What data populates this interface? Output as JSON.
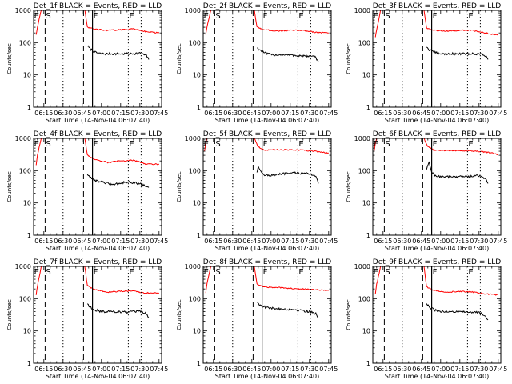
{
  "shared": {
    "ylabel": "Counts/sec",
    "xlabel": "Start Time (14-Nov-04 06:07:40)",
    "x_tick_labels": [
      "06:15",
      "06:30",
      "06:45",
      "07:00",
      "07:15",
      "07:30",
      "07:45"
    ],
    "y_tick_labels": [
      "1",
      "10",
      "100",
      "1000"
    ],
    "colors": {
      "events": "#000000",
      "lld": "#ff0000",
      "axes": "#000000"
    },
    "markers": [
      {
        "label": "E",
        "time": "06:08",
        "style": "none"
      },
      {
        "label": "S",
        "time": "06:16",
        "style": "dashed"
      },
      {
        "label": "",
        "time": "06:30",
        "style": "dotted"
      },
      {
        "label": "",
        "time": "06:46",
        "style": "dashed"
      },
      {
        "label": "F",
        "time": "06:53",
        "style": "solid"
      },
      {
        "label": "E",
        "time": "07:21",
        "style": "dotted"
      },
      {
        "label": "",
        "time": "07:31",
        "style": "dotted"
      }
    ]
  },
  "chart_data": [
    {
      "type": "line",
      "title": "Det_1f BLACK = Events, RED = LLD",
      "x_range": [
        "06:07",
        "07:47"
      ],
      "y_scale": "log",
      "ylim": [
        1,
        1000
      ],
      "series": [
        {
          "name": "Events",
          "start": "06:49",
          "end": "07:37",
          "x": [
            "06:49",
            "06:51",
            "06:55",
            "07:00",
            "07:10",
            "07:20",
            "07:30",
            "07:35",
            "07:37"
          ],
          "y": [
            80,
            65,
            50,
            45,
            45,
            45,
            47,
            40,
            30
          ]
        },
        {
          "name": "LLD",
          "start": "06:09",
          "end": "07:45",
          "x": [
            "06:09",
            "06:10",
            "06:12",
            "06:13",
            "06:14",
            "06:46",
            "06:47",
            "06:49",
            "06:55",
            "07:05",
            "07:15",
            "07:25",
            "07:35",
            "07:45"
          ],
          "y": [
            180,
            300,
            700,
            1000,
            1000,
            1000,
            1000,
            300,
            260,
            240,
            250,
            270,
            220,
            200
          ]
        }
      ]
    },
    {
      "type": "line",
      "title": "Det_2f BLACK = Events, RED = LLD",
      "x_range": [
        "06:07",
        "07:47"
      ],
      "y_scale": "log",
      "ylim": [
        1,
        1000
      ],
      "series": [
        {
          "name": "Events",
          "start": "06:49",
          "end": "07:37",
          "x": [
            "06:49",
            "06:51",
            "06:55",
            "07:00",
            "07:10",
            "07:20",
            "07:30",
            "07:35",
            "07:37"
          ],
          "y": [
            70,
            60,
            48,
            42,
            42,
            40,
            38,
            35,
            25
          ]
        },
        {
          "name": "LLD",
          "start": "06:09",
          "end": "07:45",
          "x": [
            "06:09",
            "06:10",
            "06:12",
            "06:13",
            "06:14",
            "06:46",
            "06:47",
            "06:49",
            "06:55",
            "07:05",
            "07:15",
            "07:25",
            "07:35",
            "07:45"
          ],
          "y": [
            180,
            300,
            700,
            1000,
            1000,
            1000,
            1000,
            300,
            250,
            230,
            240,
            240,
            210,
            200
          ]
        }
      ]
    },
    {
      "type": "line",
      "title": "Det_3f BLACK = Events, RED = LLD",
      "x_range": [
        "06:07",
        "07:47"
      ],
      "y_scale": "log",
      "ylim": [
        1,
        1000
      ],
      "series": [
        {
          "name": "Events",
          "start": "06:49",
          "end": "07:37",
          "x": [
            "06:49",
            "06:51",
            "06:55",
            "07:00",
            "07:10",
            "07:20",
            "07:30",
            "07:35",
            "07:37"
          ],
          "y": [
            75,
            60,
            50,
            45,
            45,
            45,
            45,
            40,
            30
          ]
        },
        {
          "name": "LLD",
          "start": "06:09",
          "end": "07:45",
          "x": [
            "06:09",
            "06:10",
            "06:12",
            "06:13",
            "06:14",
            "06:46",
            "06:47",
            "06:49",
            "06:55",
            "07:05",
            "07:15",
            "07:25",
            "07:35",
            "07:45"
          ],
          "y": [
            150,
            250,
            600,
            1000,
            1000,
            1000,
            1000,
            280,
            240,
            230,
            240,
            240,
            200,
            170
          ]
        }
      ]
    },
    {
      "type": "line",
      "title": "Det_4f BLACK = Events, RED = LLD",
      "x_range": [
        "06:07",
        "07:47"
      ],
      "y_scale": "log",
      "ylim": [
        1,
        1000
      ],
      "series": [
        {
          "name": "Events",
          "start": "06:49",
          "end": "07:37",
          "x": [
            "06:49",
            "06:51",
            "06:55",
            "07:00",
            "07:05",
            "07:10",
            "07:20",
            "07:30",
            "07:37"
          ],
          "y": [
            80,
            60,
            50,
            45,
            40,
            38,
            45,
            40,
            30
          ]
        },
        {
          "name": "LLD",
          "start": "06:09",
          "end": "07:45",
          "x": [
            "06:09",
            "06:10",
            "06:12",
            "06:13",
            "06:14",
            "06:46",
            "06:47",
            "06:49",
            "06:55",
            "07:05",
            "07:15",
            "07:25",
            "07:35",
            "07:45"
          ],
          "y": [
            150,
            300,
            700,
            1000,
            1000,
            1000,
            1000,
            300,
            220,
            180,
            200,
            210,
            160,
            160
          ]
        }
      ]
    },
    {
      "type": "line",
      "title": "Det_5f BLACK = Events, RED = LLD",
      "x_range": [
        "06:07",
        "07:47"
      ],
      "y_scale": "log",
      "ylim": [
        1,
        1000
      ],
      "series": [
        {
          "name": "Events",
          "start": "06:49",
          "end": "07:37",
          "x": [
            "06:49",
            "06:50",
            "06:52",
            "06:55",
            "07:00",
            "07:10",
            "07:20",
            "07:30",
            "07:35",
            "07:37"
          ],
          "y": [
            90,
            140,
            90,
            75,
            70,
            80,
            85,
            80,
            70,
            40
          ]
        },
        {
          "name": "LLD",
          "start": "06:08",
          "end": "07:45",
          "x": [
            "06:08",
            "06:09",
            "06:10",
            "06:11",
            "06:46",
            "06:47",
            "06:50",
            "06:55",
            "07:05",
            "07:15",
            "07:25",
            "07:35",
            "07:45"
          ],
          "y": [
            400,
            700,
            1000,
            1000,
            1000,
            1000,
            550,
            430,
            450,
            440,
            430,
            400,
            350
          ]
        }
      ]
    },
    {
      "type": "line",
      "title": "Det_6f BLACK = Events, RED = LLD",
      "x_range": [
        "06:07",
        "07:47"
      ],
      "y_scale": "log",
      "ylim": [
        1,
        1000
      ],
      "series": [
        {
          "name": "Events",
          "start": "06:49",
          "end": "07:37",
          "x": [
            "06:49",
            "06:51",
            "06:53",
            "06:56",
            "07:00",
            "07:10",
            "07:20",
            "07:30",
            "07:35",
            "07:37"
          ],
          "y": [
            110,
            180,
            90,
            70,
            65,
            65,
            65,
            70,
            55,
            40
          ]
        },
        {
          "name": "LLD",
          "start": "06:08",
          "end": "07:45",
          "x": [
            "06:08",
            "06:09",
            "06:10",
            "06:11",
            "06:46",
            "06:47",
            "06:50",
            "06:55",
            "07:05",
            "07:15",
            "07:25",
            "07:35",
            "07:45"
          ],
          "y": [
            400,
            700,
            1000,
            1000,
            1000,
            1000,
            550,
            430,
            420,
            420,
            400,
            380,
            320
          ]
        }
      ]
    },
    {
      "type": "line",
      "title": "Det_7f BLACK = Events, RED = LLD",
      "x_range": [
        "06:07",
        "07:47"
      ],
      "y_scale": "log",
      "ylim": [
        1,
        1000
      ],
      "series": [
        {
          "name": "Events",
          "start": "06:49",
          "end": "07:37",
          "x": [
            "06:49",
            "06:51",
            "06:55",
            "07:00",
            "07:10",
            "07:20",
            "07:30",
            "07:35",
            "07:37"
          ],
          "y": [
            70,
            55,
            45,
            40,
            40,
            38,
            40,
            35,
            25
          ]
        },
        {
          "name": "LLD",
          "start": "06:09",
          "end": "07:45",
          "x": [
            "06:09",
            "06:10",
            "06:12",
            "06:13",
            "06:14",
            "06:46",
            "06:47",
            "06:49",
            "06:55",
            "07:05",
            "07:15",
            "07:25",
            "07:35",
            "07:45"
          ],
          "y": [
            130,
            250,
            600,
            1000,
            1000,
            1000,
            1000,
            250,
            190,
            160,
            170,
            170,
            150,
            150
          ]
        }
      ]
    },
    {
      "type": "line",
      "title": "Det_8f BLACK = Events, RED = LLD",
      "x_range": [
        "06:07",
        "07:47"
      ],
      "y_scale": "log",
      "ylim": [
        1,
        1000
      ],
      "series": [
        {
          "name": "Events",
          "start": "06:49",
          "end": "07:37",
          "x": [
            "06:49",
            "06:51",
            "06:55",
            "07:00",
            "07:10",
            "07:20",
            "07:30",
            "07:35",
            "07:37"
          ],
          "y": [
            80,
            65,
            55,
            50,
            48,
            45,
            40,
            35,
            25
          ]
        },
        {
          "name": "LLD",
          "start": "06:09",
          "end": "07:45",
          "x": [
            "06:09",
            "06:10",
            "06:12",
            "06:13",
            "06:14",
            "06:46",
            "06:47",
            "06:49",
            "06:55",
            "07:05",
            "07:15",
            "07:25",
            "07:35",
            "07:45"
          ],
          "y": [
            150,
            300,
            700,
            1000,
            1000,
            1000,
            1000,
            280,
            230,
            220,
            210,
            200,
            190,
            180
          ]
        }
      ]
    },
    {
      "type": "line",
      "title": "Det_9f BLACK = Events, RED = LLD",
      "x_range": [
        "06:07",
        "07:47"
      ],
      "y_scale": "log",
      "ylim": [
        1,
        1000
      ],
      "series": [
        {
          "name": "Events",
          "start": "06:49",
          "end": "07:37",
          "x": [
            "06:49",
            "06:51",
            "06:55",
            "07:00",
            "07:10",
            "07:20",
            "07:30",
            "07:35",
            "07:37"
          ],
          "y": [
            70,
            55,
            45,
            40,
            40,
            38,
            38,
            30,
            22
          ]
        },
        {
          "name": "LLD",
          "start": "06:09",
          "end": "07:45",
          "x": [
            "06:09",
            "06:10",
            "06:12",
            "06:13",
            "06:14",
            "06:46",
            "06:47",
            "06:49",
            "06:55",
            "07:05",
            "07:15",
            "07:25",
            "07:35",
            "07:45"
          ],
          "y": [
            140,
            280,
            600,
            1000,
            1000,
            1000,
            1000,
            230,
            180,
            160,
            170,
            160,
            140,
            130
          ]
        }
      ]
    }
  ]
}
